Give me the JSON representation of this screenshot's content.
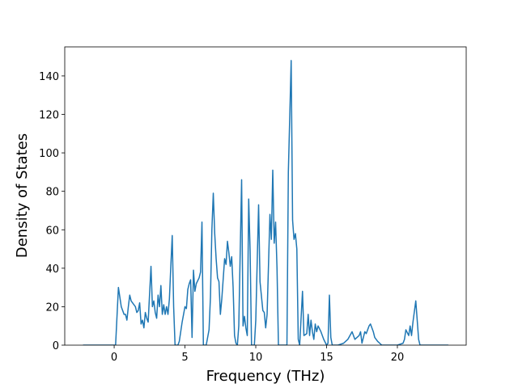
{
  "chart_data": {
    "type": "line",
    "xlabel": "Frequency (THz)",
    "ylabel": "Density of States",
    "color": "#1f77b4",
    "x": [
      -2.2,
      0.0,
      0.1,
      0.3,
      0.5,
      0.7,
      0.8,
      0.9,
      1.0,
      1.1,
      1.2,
      1.4,
      1.5,
      1.6,
      1.7,
      1.8,
      1.9,
      2.0,
      2.1,
      2.2,
      2.3,
      2.4,
      2.6,
      2.7,
      2.8,
      2.9,
      3.0,
      3.1,
      3.2,
      3.3,
      3.4,
      3.5,
      3.6,
      3.7,
      3.8,
      3.9,
      4.0,
      4.1,
      4.2,
      4.3,
      4.5,
      4.6,
      4.8,
      5.0,
      5.1,
      5.2,
      5.3,
      5.4,
      5.5,
      5.6,
      5.7,
      5.8,
      6.0,
      6.1,
      6.2,
      6.3,
      6.5,
      6.7,
      6.8,
      6.9,
      7.0,
      7.1,
      7.2,
      7.3,
      7.4,
      7.5,
      7.6,
      7.8,
      7.9,
      8.0,
      8.1,
      8.2,
      8.3,
      8.4,
      8.5,
      8.6,
      8.7,
      8.8,
      9.0,
      9.1,
      9.2,
      9.3,
      9.4,
      9.5,
      9.6,
      9.7,
      9.8,
      9.9,
      10.0,
      10.2,
      10.3,
      10.5,
      10.6,
      10.7,
      10.8,
      11.0,
      11.1,
      11.2,
      11.3,
      11.4,
      11.5,
      11.6,
      11.7,
      12.2,
      12.3,
      12.5,
      12.6,
      12.7,
      12.8,
      12.9,
      13.0,
      13.1,
      13.3,
      13.4,
      13.6,
      13.7,
      13.8,
      13.9,
      14.0,
      14.1,
      14.2,
      14.3,
      14.4,
      14.6,
      14.8,
      15.0,
      15.1,
      15.2,
      15.3,
      15.4,
      15.8,
      16.2,
      16.5,
      16.8,
      17.0,
      17.3,
      17.4,
      17.5,
      17.6,
      17.7,
      17.8,
      18.0,
      18.1,
      18.3,
      18.4,
      18.6,
      18.9,
      19.5,
      20.0,
      20.4,
      20.5,
      20.6,
      20.8,
      20.9,
      21.0,
      21.1,
      21.3,
      21.4,
      21.5,
      21.6,
      23.6
    ],
    "values": [
      0,
      0,
      0,
      30,
      20,
      16,
      16,
      13,
      20,
      26,
      23,
      21,
      20,
      17,
      18,
      22,
      11,
      13,
      9,
      17,
      14,
      12,
      41,
      20,
      23,
      17,
      14,
      26,
      20,
      31,
      16,
      21,
      16,
      20,
      16,
      24,
      41,
      57,
      20,
      0,
      0,
      2,
      12,
      20,
      19,
      29,
      32,
      34,
      4,
      39,
      28,
      32,
      35,
      38,
      64,
      0,
      0,
      8,
      25,
      60,
      79,
      58,
      45,
      35,
      33,
      16,
      24,
      45,
      42,
      54,
      48,
      41,
      46,
      30,
      5,
      1,
      0,
      10,
      86,
      10,
      15,
      9,
      5,
      76,
      49,
      0,
      0,
      0,
      13,
      73,
      33,
      18,
      17,
      9,
      16,
      68,
      55,
      91,
      53,
      64,
      40,
      0,
      0,
      0,
      90,
      148,
      65,
      55,
      58,
      50,
      3,
      0,
      28,
      5,
      6,
      16,
      5,
      13,
      7,
      3,
      11,
      7,
      10,
      7,
      3,
      0,
      1,
      26,
      4,
      0,
      0,
      1,
      3,
      7,
      3,
      5,
      7,
      1,
      4,
      7,
      6,
      10,
      11,
      7,
      4,
      2,
      0,
      0,
      0,
      1,
      3,
      8,
      5,
      10,
      5,
      12,
      23,
      13,
      3,
      0,
      0
    ],
    "xlim": [
      -3.49,
      24.86
    ],
    "ylim": [
      0,
      155.1
    ],
    "xticks": [
      0,
      5,
      10,
      15,
      20
    ],
    "yticks": [
      0,
      20,
      40,
      60,
      80,
      100,
      120,
      140
    ]
  }
}
